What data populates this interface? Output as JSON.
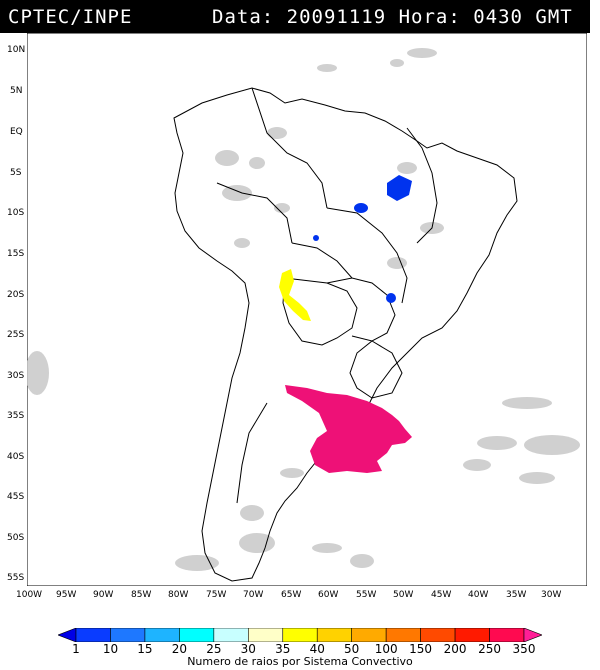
{
  "header": {
    "source": "CPTEC/INPE",
    "date_time": "Data: 20091119 Hora: 0430 GMT"
  },
  "map": {
    "lon_ticks": [
      "100W",
      "95W",
      "90W",
      "85W",
      "80W",
      "75W",
      "70W",
      "65W",
      "60W",
      "55W",
      "50W",
      "45W",
      "40W",
      "35W",
      "30W"
    ],
    "lat_ticks": [
      "10N",
      "5N",
      "EQ",
      "5S",
      "10S",
      "15S",
      "20S",
      "25S",
      "30S",
      "35S",
      "40S",
      "45S",
      "50S",
      "55S"
    ],
    "colors": {
      "land_border": "#000000",
      "cloud_gray": "#c8c8c8",
      "background": "#ffffff"
    },
    "convective_systems": [
      {
        "region": "northeast-brazil",
        "class": "1",
        "color": "#0033ee"
      },
      {
        "region": "paraguay-bolivia",
        "class": "35",
        "color": "#ffff00"
      },
      {
        "region": "uruguay-argentina",
        "class": "350",
        "color": "#ee1177"
      }
    ]
  },
  "colorbar": {
    "labels": [
      "1",
      "10",
      "15",
      "20",
      "25",
      "30",
      "35",
      "40",
      "50",
      "100",
      "150",
      "200",
      "250",
      "350"
    ],
    "colors": [
      "#0000e6",
      "#0a3cff",
      "#1e78ff",
      "#1eb4ff",
      "#00ffff",
      "#c8ffff",
      "#ffffc8",
      "#ffff00",
      "#ffd200",
      "#ffaa00",
      "#ff7800",
      "#ff4a00",
      "#ff1a00",
      "#ff0a50",
      "#ff1e96"
    ],
    "title": "Numero de raios por Sistema Convectivo"
  }
}
